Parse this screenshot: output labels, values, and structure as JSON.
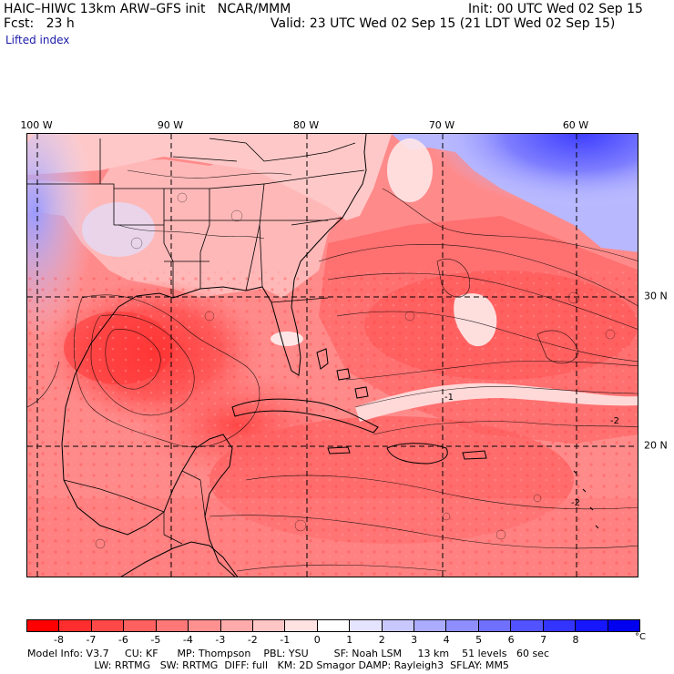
{
  "header": {
    "model_line": "HAIC–HIWC 13km ARW–GFS init   NCAR/MMM",
    "init_line": "Init: 00 UTC Wed 02 Sep 15",
    "fcst_label": "Fcst:   23 h",
    "valid_line": "Valid: 23 UTC Wed 02 Sep 15 (21 LDT Wed 02 Sep 15)",
    "field_name": "Lifted index"
  },
  "map": {
    "longitude_labels": [
      "100 W",
      "90 W",
      "80 W",
      "70 W",
      "60 W"
    ],
    "latitude_labels": [
      "30 N",
      "20 N"
    ],
    "contour_labels": [
      "-2",
      "-1",
      "-2"
    ]
  },
  "colorbar": {
    "colors": [
      "#ff0000",
      "#ff2e2e",
      "#ff4848",
      "#ff6060",
      "#ff7878",
      "#ff9090",
      "#ffabab",
      "#ffc6c6",
      "#ffe2e2",
      "#ffffff",
      "#e4e4ff",
      "#c8c8ff",
      "#ababff",
      "#8e8eff",
      "#7070ff",
      "#5252ff",
      "#3434ff",
      "#1616ff",
      "#0000f0"
    ],
    "tick_labels": [
      "-8",
      "-7",
      "-6",
      "-5",
      "-4",
      "-3",
      "-2",
      "-1",
      "0",
      "1",
      "2",
      "3",
      "4",
      "5",
      "6",
      "7",
      "8"
    ],
    "unit": "°C"
  },
  "footer": {
    "line1": "Model Info: V3.7     CU: KF      MP: Thompson    PBL: YSU        SF: Noah LSM     13 km    51 levels   60 sec",
    "line2": "                     LW: RRTMG   SW: RRTMG  DIFF: full   KM: 2D Smagor DAMP: Rayleigh3  SFLAY: MM5"
  },
  "icons": {
    "map": "weather-map",
    "colorbar": "color-scale"
  }
}
